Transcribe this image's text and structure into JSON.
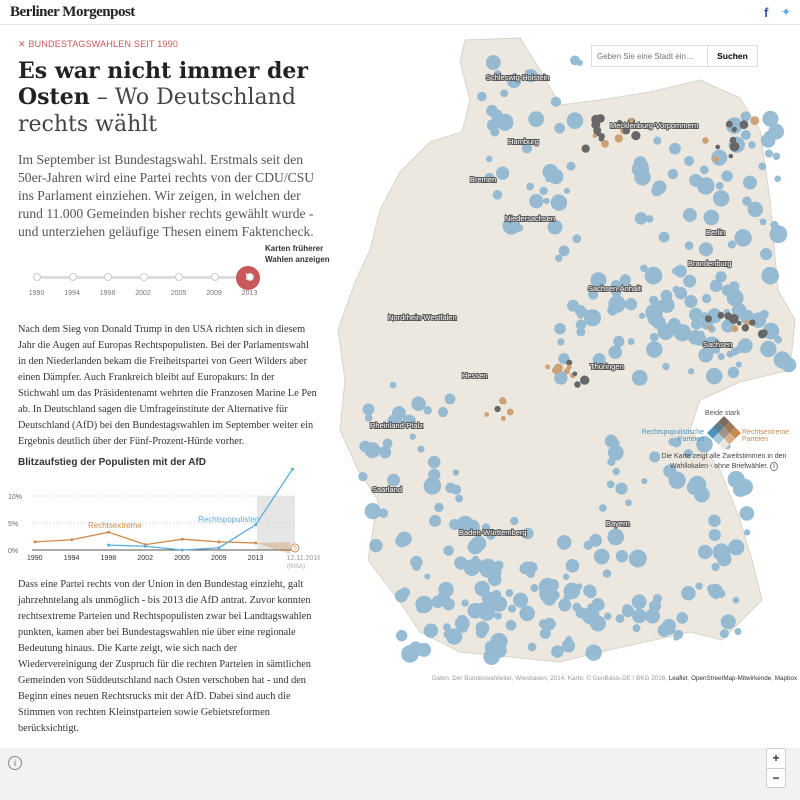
{
  "header": {
    "logo": "Berliner Morgenpost",
    "facebook_icon": "f",
    "twitter_icon": "t"
  },
  "article": {
    "kicker": "BUNDESTAGSWAHLEN SEIT 1990",
    "title_bold": "Es war nicht immer der Osten",
    "title_light": " – Wo Deutschland rechts wählt",
    "lead": "Im September ist Bundestagswahl. Erstmals seit den 50er-Jahren wird eine Partei rechts von der CDU/CSU ins Parlament einziehen. Wir zeigen, in welchen der rund 11.000 Gemeinden bisher rechts gewählt wurde - und unterziehen geläufige Thesen einem Faktencheck.",
    "slider_hint": "Karten früherer Wahlen anzeigen",
    "slider_years": [
      "1990",
      "1994",
      "1998",
      "2002",
      "2005",
      "2009",
      "2013"
    ],
    "slider_selected": "2013",
    "body1": "Nach dem Sieg von Donald Trump in den USA richten sich in diesem Jahr die Augen auf Europas Rechtspopulisten. Bei der Parlamentswahl in den Niederlanden bekam die Freiheitspartei von Geert Wilders aber einen Dämpfer. Auch Frankreich bleibt auf Europakurs: In der Stichwahl um das Präsidentenamt wehrten die Franzosen Marine Le Pen ab. In Deutschland sagen die Umfrageinstitute der Alternative für Deutschland (AfD) bei den Bundestagswahlen im September weiter ein Ergebnis deutlich über der Fünf-Prozent-Hürde vorher.",
    "body2": "Dass eine Partei rechts von der Union in den Bundestag einzieht, galt jahrzehntelang als unmöglich - bis 2013 die AfD antrat. Zuvor konnten rechtsextreme Parteien und Rechtspopulisten zwar bei Landtagswahlen punkten, kamen aber bei Bundestagswahlen nie über eine regionale Bedeutung hinaus. Die Karte zeigt, wie sich nach der Wiedervereinigung der Zuspruch für die rechten Parteien in sämtlichen Gemeinden von Süddeutschland nach Osten verschoben hat - und den Beginn eines neuen Rechtsrucks mit der AfD. Dabei sind auch die Stimmen von rechten Kleinstparteien sowie Gebietsreformen berücksichtigt."
  },
  "chart_data": {
    "type": "line",
    "title": "Blitzaufstieg der Populisten mit der AfD",
    "categories": [
      "1990",
      "1994",
      "1998",
      "2002",
      "2005",
      "2009",
      "2013",
      "12.11.2018"
    ],
    "category_note": "(INSA)",
    "yticks": [
      "0%",
      "5%",
      "10%"
    ],
    "ylim": [
      0,
      10
    ],
    "series": [
      {
        "name": "Rechtsextreme",
        "color": "#d08a4a",
        "values": [
          1.5,
          1.9,
          3.3,
          1.0,
          2.0,
          1.5,
          1.3,
          null
        ]
      },
      {
        "name": "Rechtspopulisten",
        "color": "#5aaedb",
        "values": [
          null,
          null,
          0.9,
          0.7,
          0.0,
          0.4,
          4.7,
          15
        ]
      }
    ],
    "unknown_marker": "?"
  },
  "map": {
    "search_placeholder": "Geben Sie eine Stadt ein...",
    "search_button": "Suchen",
    "labels": [
      "Schleswig-Holstein",
      "Hamburg",
      "Mecklenburg-Vorpommern",
      "Bremen",
      "Niedersachsen",
      "Berlin",
      "Brandenburg",
      "Sachsen-Anhalt",
      "Nordrhein-Westfalen",
      "Sachsen",
      "Thüringen",
      "Hessen",
      "Rheinland-Pfalz",
      "Saarland",
      "Baden-Württemberg",
      "Bayern"
    ],
    "legend": {
      "both": "Beide stark",
      "populist": "Rechtspopulistische Parteien",
      "extreme": "Rechtsextreme Parteien",
      "note": "Die Karte zeigt alle Zweitstimmen in den Wahllokalen - ohne Briefwähler.",
      "info_icon": "i"
    },
    "attribution": "Daten: Der Bundeswahlleiter, Wiesbaden, 2014. Karte: © GeoBasis-DE / BKG 2016,",
    "attribution_links": [
      "Leaflet",
      "OpenStreetMap-Mitwirkende",
      "Mapbox"
    ],
    "zoom_in": "+",
    "zoom_out": "−",
    "colors": {
      "base": "#ece8e0",
      "populist": "#7faecb",
      "extreme": "#c99a6b",
      "both": "#5a5a5a"
    }
  },
  "footer": {
    "info_icon": "i"
  }
}
